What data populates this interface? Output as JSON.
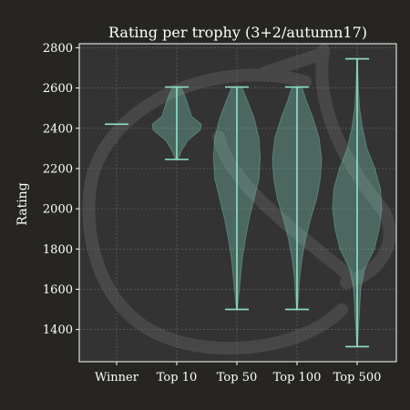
{
  "chart_data": {
    "type": "violin",
    "title": "Rating per trophy (3+2/autumn17)",
    "xlabel": "",
    "ylabel": "Rating",
    "ylim": [
      1240,
      2820
    ],
    "yticks": [
      1400,
      1600,
      1800,
      2000,
      2200,
      2400,
      2600,
      2800
    ],
    "grid": true,
    "colors": {
      "background": "#262521",
      "plot_background": "#333333",
      "violin_fill": "#7fd6c0",
      "violin_line": "#8fe3cd",
      "grid": "#6b6b6b",
      "text": "#ffffff",
      "watermark": "#4a4a4a"
    },
    "categories": [
      "Winner",
      "Top 10",
      "Top 50",
      "Top 100",
      "Top 500"
    ],
    "series": [
      {
        "category": "Winner",
        "min": 2420,
        "max": 2420,
        "density": [
          [
            2420,
            0
          ]
        ]
      },
      {
        "category": "Top 10",
        "min": 2245,
        "max": 2605,
        "density": [
          [
            2245,
            0.05
          ],
          [
            2290,
            0.2
          ],
          [
            2340,
            0.45
          ],
          [
            2390,
            0.95
          ],
          [
            2420,
            1.0
          ],
          [
            2460,
            0.6
          ],
          [
            2520,
            0.45
          ],
          [
            2570,
            0.3
          ],
          [
            2605,
            0.15
          ]
        ]
      },
      {
        "category": "Top 50",
        "min": 1500,
        "max": 2605,
        "density": [
          [
            1500,
            0.02
          ],
          [
            1550,
            0.06
          ],
          [
            1650,
            0.14
          ],
          [
            1750,
            0.22
          ],
          [
            1850,
            0.35
          ],
          [
            1950,
            0.5
          ],
          [
            2050,
            0.7
          ],
          [
            2150,
            0.9
          ],
          [
            2250,
            0.95
          ],
          [
            2350,
            0.9
          ],
          [
            2450,
            0.7
          ],
          [
            2530,
            0.45
          ],
          [
            2605,
            0.2
          ]
        ]
      },
      {
        "category": "Top 100",
        "min": 1500,
        "max": 2605,
        "density": [
          [
            1500,
            0.02
          ],
          [
            1550,
            0.05
          ],
          [
            1650,
            0.1
          ],
          [
            1750,
            0.2
          ],
          [
            1850,
            0.35
          ],
          [
            1950,
            0.55
          ],
          [
            2050,
            0.8
          ],
          [
            2150,
            0.95
          ],
          [
            2250,
            1.0
          ],
          [
            2350,
            0.9
          ],
          [
            2450,
            0.65
          ],
          [
            2530,
            0.4
          ],
          [
            2605,
            0.2
          ]
        ]
      },
      {
        "category": "Top 500",
        "min": 1315,
        "max": 2745,
        "density": [
          [
            1315,
            0.02
          ],
          [
            1400,
            0.05
          ],
          [
            1500,
            0.1
          ],
          [
            1600,
            0.14
          ],
          [
            1700,
            0.3
          ],
          [
            1800,
            0.7
          ],
          [
            1900,
            0.9
          ],
          [
            2000,
            1.0
          ],
          [
            2100,
            0.95
          ],
          [
            2200,
            0.72
          ],
          [
            2300,
            0.4
          ],
          [
            2400,
            0.22
          ],
          [
            2500,
            0.1
          ],
          [
            2600,
            0.05
          ],
          [
            2745,
            0.01
          ]
        ]
      }
    ]
  }
}
